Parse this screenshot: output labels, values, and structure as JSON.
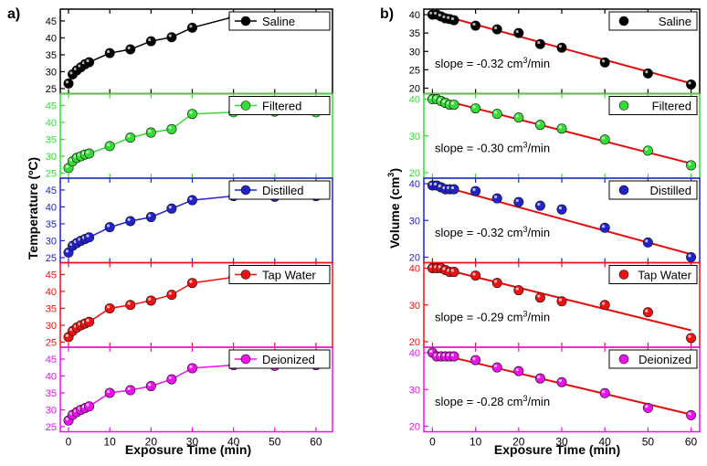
{
  "figure": {
    "panel_labels": [
      "a)",
      "b)"
    ],
    "shared_xlabel": "Exposure Time (min)",
    "left_ylabel": "Temperature (ºC)",
    "right_ylabel": "Volume (cm3)",
    "right_ylabel_main": "Volume (cm",
    "right_ylabel_sup": "3",
    "right_ylabel_end": ")"
  },
  "chart_data": [
    {
      "type": "line",
      "group": "temperature",
      "legend": "Saline",
      "color": "#000000",
      "x": [
        0,
        1,
        2,
        3,
        4,
        5,
        10,
        15,
        20,
        25,
        30,
        40,
        50,
        60
      ],
      "y": [
        26.5,
        29.2,
        30.4,
        31.3,
        32.2,
        32.8,
        35.5,
        36.6,
        39.0,
        40.2,
        43.0,
        46.2,
        46.0,
        46.0
      ],
      "ylim": [
        23.5,
        48.5
      ],
      "yticks": [
        25,
        30,
        35,
        40,
        45
      ],
      "xlim": [
        -2,
        64
      ],
      "xticks": [
        0,
        10,
        20,
        30,
        40,
        50,
        60
      ]
    },
    {
      "type": "line",
      "group": "temperature",
      "legend": "Filtered",
      "color": "#33dd33",
      "x": [
        0,
        1,
        2,
        3,
        4,
        5,
        10,
        15,
        20,
        25,
        30,
        40,
        50,
        60
      ],
      "y": [
        26.5,
        28.5,
        29.5,
        30.0,
        30.5,
        30.8,
        33.0,
        35.5,
        37.0,
        38.0,
        42.5,
        43.0,
        43.2,
        43.0
      ],
      "ylim": [
        23.5,
        48.5
      ],
      "yticks": [
        25,
        30,
        35,
        40,
        45
      ],
      "xlim": [
        -2,
        64
      ],
      "xticks": [
        0,
        10,
        20,
        30,
        40,
        50,
        60
      ]
    },
    {
      "type": "line",
      "group": "temperature",
      "legend": "Distilled",
      "color": "#2222cc",
      "x": [
        0,
        1,
        2,
        3,
        4,
        5,
        10,
        15,
        20,
        25,
        30,
        40,
        50,
        60
      ],
      "y": [
        26.5,
        28.5,
        29.3,
        30.0,
        30.5,
        31.0,
        34.0,
        35.8,
        37.0,
        39.5,
        42.0,
        43.2,
        43.0,
        43.2
      ],
      "ylim": [
        23.5,
        48.5
      ],
      "yticks": [
        25,
        30,
        35,
        40,
        45
      ],
      "xlim": [
        -2,
        64
      ],
      "xticks": [
        0,
        10,
        20,
        30,
        40,
        50,
        60
      ]
    },
    {
      "type": "line",
      "group": "temperature",
      "legend": "Tap Water",
      "color": "#ee1111",
      "x": [
        0,
        1,
        2,
        3,
        4,
        5,
        10,
        15,
        20,
        25,
        30,
        40,
        50,
        60
      ],
      "y": [
        26.5,
        28.3,
        29.3,
        30.0,
        30.5,
        31.0,
        35.0,
        36.0,
        37.3,
        39.0,
        42.5,
        44.2,
        44.0,
        44.0
      ],
      "ylim": [
        23.5,
        48.5
      ],
      "yticks": [
        25,
        30,
        35,
        40,
        45
      ],
      "xlim": [
        -2,
        64
      ],
      "xticks": [
        0,
        10,
        20,
        30,
        40,
        50,
        60
      ]
    },
    {
      "type": "line",
      "group": "temperature",
      "legend": "Deionized",
      "color": "#ee11ee",
      "x": [
        0,
        1,
        2,
        3,
        4,
        5,
        10,
        15,
        20,
        25,
        30,
        40,
        50,
        60
      ],
      "y": [
        26.8,
        28.5,
        29.3,
        30.0,
        30.5,
        31.0,
        35.0,
        35.8,
        37.0,
        39.0,
        42.3,
        43.2,
        43.0,
        43.2
      ],
      "ylim": [
        23.5,
        48.5
      ],
      "yticks": [
        25,
        30,
        35,
        40,
        45
      ],
      "xlim": [
        -2,
        64
      ],
      "xticks": [
        0,
        10,
        20,
        30,
        40,
        50,
        60
      ]
    },
    {
      "type": "scatter",
      "group": "volume",
      "legend": "Saline",
      "color": "#000000",
      "x": [
        0,
        1,
        2,
        3,
        4,
        5,
        10,
        15,
        20,
        25,
        30,
        40,
        50,
        60
      ],
      "y": [
        40.0,
        40.0,
        39.5,
        39.0,
        38.8,
        38.5,
        37.0,
        36.0,
        35.0,
        32.0,
        31.0,
        27.0,
        24.0,
        21.0
      ],
      "fit": {
        "x": [
          0,
          60
        ],
        "y": [
          40.5,
          21.3
        ]
      },
      "annotation_main": "slope = -0.32 cm",
      "annotation_sup": "3",
      "annotation_end": "/min",
      "ylim": [
        18.5,
        41.5
      ],
      "yticks": [
        20,
        25,
        30,
        35,
        40
      ],
      "xlim": [
        -2,
        62
      ],
      "xticks": [
        0,
        10,
        20,
        30,
        40,
        50,
        60
      ]
    },
    {
      "type": "scatter",
      "group": "volume",
      "legend": "Filtered",
      "color": "#33dd33",
      "x": [
        0,
        1,
        2,
        3,
        4,
        5,
        10,
        15,
        20,
        25,
        30,
        40,
        50,
        60
      ],
      "y": [
        40.0,
        40.0,
        39.5,
        39.0,
        38.5,
        38.5,
        37.5,
        36.0,
        35.0,
        33.0,
        32.0,
        29.0,
        26.0,
        22.0
      ],
      "fit": {
        "x": [
          0,
          60
        ],
        "y": [
          40.5,
          22.5
        ]
      },
      "annotation_main": "slope = -0.30 cm",
      "annotation_sup": "3",
      "annotation_end": "/min",
      "ylim": [
        18.5,
        41.5
      ],
      "yticks": [
        20,
        30,
        40
      ],
      "xlim": [
        -2,
        62
      ],
      "xticks": [
        0,
        10,
        20,
        30,
        40,
        50,
        60
      ]
    },
    {
      "type": "scatter",
      "group": "volume",
      "legend": "Distilled",
      "color": "#2222cc",
      "x": [
        0,
        1,
        2,
        3,
        4,
        5,
        10,
        15,
        20,
        25,
        30,
        40,
        50,
        60
      ],
      "y": [
        39.5,
        39.5,
        39.0,
        38.5,
        38.5,
        38.5,
        38.0,
        36.0,
        35.0,
        34.0,
        33.0,
        28.0,
        24.0,
        20.0
      ],
      "fit": {
        "x": [
          0,
          60
        ],
        "y": [
          40.0,
          20.8
        ]
      },
      "annotation_main": "slope = -0.32 cm",
      "annotation_sup": "3",
      "annotation_end": "/min",
      "ylim": [
        18.5,
        41.5
      ],
      "yticks": [
        20,
        30,
        40
      ],
      "xlim": [
        -2,
        62
      ],
      "xticks": [
        0,
        10,
        20,
        30,
        40,
        50,
        60
      ]
    },
    {
      "type": "scatter",
      "group": "volume",
      "legend": "Tap Water",
      "color": "#ee1111",
      "x": [
        0,
        1,
        2,
        3,
        4,
        5,
        10,
        15,
        20,
        25,
        30,
        40,
        50,
        60
      ],
      "y": [
        40.0,
        40.0,
        40.0,
        39.5,
        39.0,
        39.0,
        38.0,
        36.0,
        34.0,
        32.0,
        31.0,
        30.0,
        28.0,
        21.0
      ],
      "fit": {
        "x": [
          0,
          60
        ],
        "y": [
          40.5,
          23.1
        ]
      },
      "annotation_main": "slope = -0.29 cm",
      "annotation_sup": "3",
      "annotation_end": "/min",
      "ylim": [
        18.5,
        41.5
      ],
      "yticks": [
        20,
        30,
        40
      ],
      "xlim": [
        -2,
        62
      ],
      "xticks": [
        0,
        10,
        20,
        30,
        40,
        50,
        60
      ]
    },
    {
      "type": "scatter",
      "group": "volume",
      "legend": "Deionized",
      "color": "#ee11ee",
      "x": [
        0,
        1,
        2,
        3,
        4,
        5,
        10,
        15,
        20,
        25,
        30,
        40,
        50,
        60
      ],
      "y": [
        40.0,
        39.0,
        39.0,
        39.0,
        39.0,
        39.0,
        38.0,
        36.0,
        35.0,
        33.0,
        32.0,
        29.0,
        25.0,
        23.0
      ],
      "fit": {
        "x": [
          0,
          60
        ],
        "y": [
          40.0,
          23.2
        ]
      },
      "annotation_main": "slope = -0.28 cm",
      "annotation_sup": "3",
      "annotation_end": "/min",
      "ylim": [
        18.5,
        41.5
      ],
      "yticks": [
        20,
        30,
        40
      ],
      "xlim": [
        -2,
        62
      ],
      "xticks": [
        0,
        10,
        20,
        30,
        40,
        50,
        60
      ]
    }
  ]
}
